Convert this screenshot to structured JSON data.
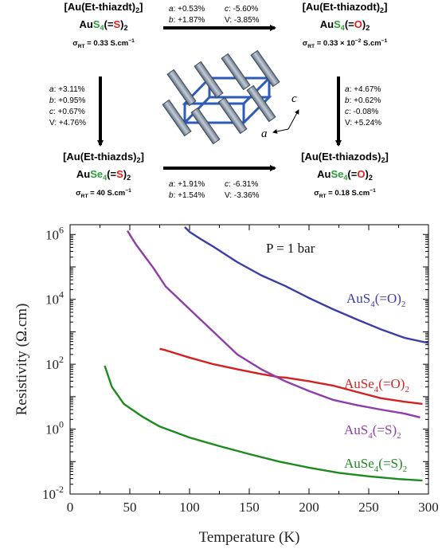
{
  "scheme": {
    "compounds": [
      {
        "id": "tl",
        "parts": [
          {
            "t": "[Au(Et-thiazdt)"
          },
          {
            "t": "2",
            "sub": true
          },
          {
            "t": "]"
          }
        ],
        "formula": [
          {
            "t": "Au"
          },
          {
            "t": "S",
            "c": "green"
          },
          {
            "t": "4",
            "c": "green",
            "sub": true
          },
          {
            "t": "(="
          },
          {
            "t": "S",
            "c": "red"
          },
          {
            "t": ")"
          },
          {
            "t": "2",
            "sub": true
          }
        ],
        "sigma_prefix": "σ",
        "sigma_sub": "RT",
        "sigma_value": " = 0.33 S.cm",
        "sigma_exp": "−1"
      },
      {
        "id": "tr",
        "parts": [
          {
            "t": "[Au(Et-thiazodt)"
          },
          {
            "t": "2",
            "sub": true
          },
          {
            "t": "]"
          }
        ],
        "formula": [
          {
            "t": "Au"
          },
          {
            "t": "S",
            "c": "green"
          },
          {
            "t": "4",
            "c": "green",
            "sub": true
          },
          {
            "t": "(="
          },
          {
            "t": "O",
            "c": "red"
          },
          {
            "t": ")"
          },
          {
            "t": "2",
            "sub": true
          }
        ],
        "sigma_prefix": "σ",
        "sigma_sub": "RT",
        "sigma_value": " = 0.33 × 10",
        "sigma_exp": "−2",
        "sigma_unit": " S.cm",
        "sigma_exp2": "−1"
      },
      {
        "id": "bl",
        "parts": [
          {
            "t": "[Au(Et-thiazds)"
          },
          {
            "t": "2",
            "sub": true
          },
          {
            "t": "]"
          }
        ],
        "formula": [
          {
            "t": "Au"
          },
          {
            "t": "Se",
            "c": "green"
          },
          {
            "t": "4",
            "c": "green",
            "sub": true
          },
          {
            "t": "(="
          },
          {
            "t": "S",
            "c": "red"
          },
          {
            "t": ")"
          },
          {
            "t": "2",
            "sub": true
          }
        ],
        "sigma_prefix": "σ",
        "sigma_sub": "RT",
        "sigma_value": " = 40 S.cm",
        "sigma_exp": "−1"
      },
      {
        "id": "br",
        "parts": [
          {
            "t": "[Au(Et-thiazods)"
          },
          {
            "t": "2",
            "sub": true
          },
          {
            "t": "]"
          }
        ],
        "formula": [
          {
            "t": "Au"
          },
          {
            "t": "Se",
            "c": "green"
          },
          {
            "t": "4",
            "c": "green",
            "sub": true
          },
          {
            "t": "(="
          },
          {
            "t": "O",
            "c": "red"
          },
          {
            "t": ")"
          },
          {
            "t": "2",
            "sub": true
          }
        ],
        "sigma_prefix": "σ",
        "sigma_sub": "RT",
        "sigma_value": " = 0.18 S.cm",
        "sigma_exp": "−1"
      }
    ],
    "changes": {
      "top": [
        [
          "a",
          ": +0.53%"
        ],
        [
          "c",
          ": -5.60%"
        ],
        [
          "b",
          ": +1.87%"
        ],
        [
          "V",
          ": -3.85%"
        ]
      ],
      "bottom": [
        [
          "a",
          ": +1.91%"
        ],
        [
          "c",
          ": -6.31%"
        ],
        [
          "b",
          ": +1.54%"
        ],
        [
          "V",
          ": -3.36%"
        ]
      ],
      "left": [
        [
          "a",
          ": +3.11%"
        ],
        [
          "b",
          ": +0.95%"
        ],
        [
          "c",
          ": +0.67%"
        ],
        [
          "V",
          ": +4.76%"
        ]
      ],
      "right": [
        [
          "a",
          ": +4.67%"
        ],
        [
          "b",
          ": +0.62%"
        ],
        [
          "c",
          ": -0.08%"
        ],
        [
          "V",
          ": +5.24%"
        ]
      ]
    },
    "axis_labels": {
      "a": "a",
      "c": "c"
    }
  },
  "chart_data": {
    "type": "line",
    "annotation": "P = 1 bar",
    "xlabel": "Temperature (K)",
    "ylabel": "Resistivity (Ω.cm)",
    "xlim": [
      0,
      300
    ],
    "ylim": [
      0.01,
      2000000
    ],
    "yscale": "log",
    "xticks": [
      0,
      50,
      100,
      150,
      200,
      250,
      300
    ],
    "yticks": [
      {
        "value": 0.01,
        "base": "10",
        "exp": "-2"
      },
      {
        "value": 1,
        "base": "10",
        "exp": "0"
      },
      {
        "value": 100,
        "base": "10",
        "exp": "2"
      },
      {
        "value": 10000,
        "base": "10",
        "exp": "4"
      },
      {
        "value": 1000000,
        "base": "10",
        "exp": "6"
      }
    ],
    "colors": {
      "AuS4O": "#3c3ca8",
      "AuSe4O": "#d42020",
      "AuS4S": "#8e3ca8",
      "AuSe4S": "#1e8a1e"
    },
    "series": [
      {
        "key": "AuS4O",
        "label": [
          {
            "t": "AuS"
          },
          {
            "t": "4",
            "sub": true
          },
          {
            "t": "(=O)"
          },
          {
            "t": "2",
            "sub": true
          }
        ],
        "x": [
          96,
          100,
          110,
          120,
          140,
          160,
          180,
          200,
          220,
          240,
          260,
          280,
          300
        ],
        "y": [
          1700000,
          1200000,
          700000,
          420000,
          140000,
          55000,
          26000,
          11000,
          5000,
          2400,
          1200,
          650,
          450
        ]
      },
      {
        "key": "AuSe4O",
        "label": [
          {
            "t": "AuSe"
          },
          {
            "t": "4",
            "sub": true
          },
          {
            "t": "(=O)"
          },
          {
            "t": "2",
            "sub": true
          }
        ],
        "x": [
          75,
          80,
          100,
          120,
          140,
          160,
          175,
          180,
          200,
          220,
          240,
          260,
          280,
          295
        ],
        "y": [
          300,
          270,
          160,
          100,
          70,
          50,
          40,
          39,
          30,
          22,
          14,
          9,
          7,
          6
        ]
      },
      {
        "key": "AuS4S",
        "label": [
          {
            "t": "AuS"
          },
          {
            "t": "4",
            "sub": true
          },
          {
            "t": "(=S)"
          },
          {
            "t": "2",
            "sub": true
          }
        ],
        "x": [
          48,
          55,
          70,
          80,
          100,
          120,
          140,
          160,
          180,
          200,
          220,
          240,
          260,
          280,
          293
        ],
        "y": [
          1300000,
          500000,
          90000,
          25000,
          5000,
          1000,
          200,
          70,
          30,
          15,
          8,
          5.5,
          4,
          3,
          2.3
        ]
      },
      {
        "key": "AuSe4S",
        "label": [
          {
            "t": "AuSe"
          },
          {
            "t": "4",
            "sub": true
          },
          {
            "t": "(=S)"
          },
          {
            "t": "2",
            "sub": true
          }
        ],
        "x": [
          29,
          35,
          45,
          60,
          75,
          100,
          125,
          150,
          175,
          200,
          225,
          250,
          275,
          295
        ],
        "y": [
          90,
          20,
          6,
          2.5,
          1.2,
          0.55,
          0.3,
          0.17,
          0.1,
          0.065,
          0.045,
          0.035,
          0.029,
          0.026
        ]
      }
    ]
  }
}
